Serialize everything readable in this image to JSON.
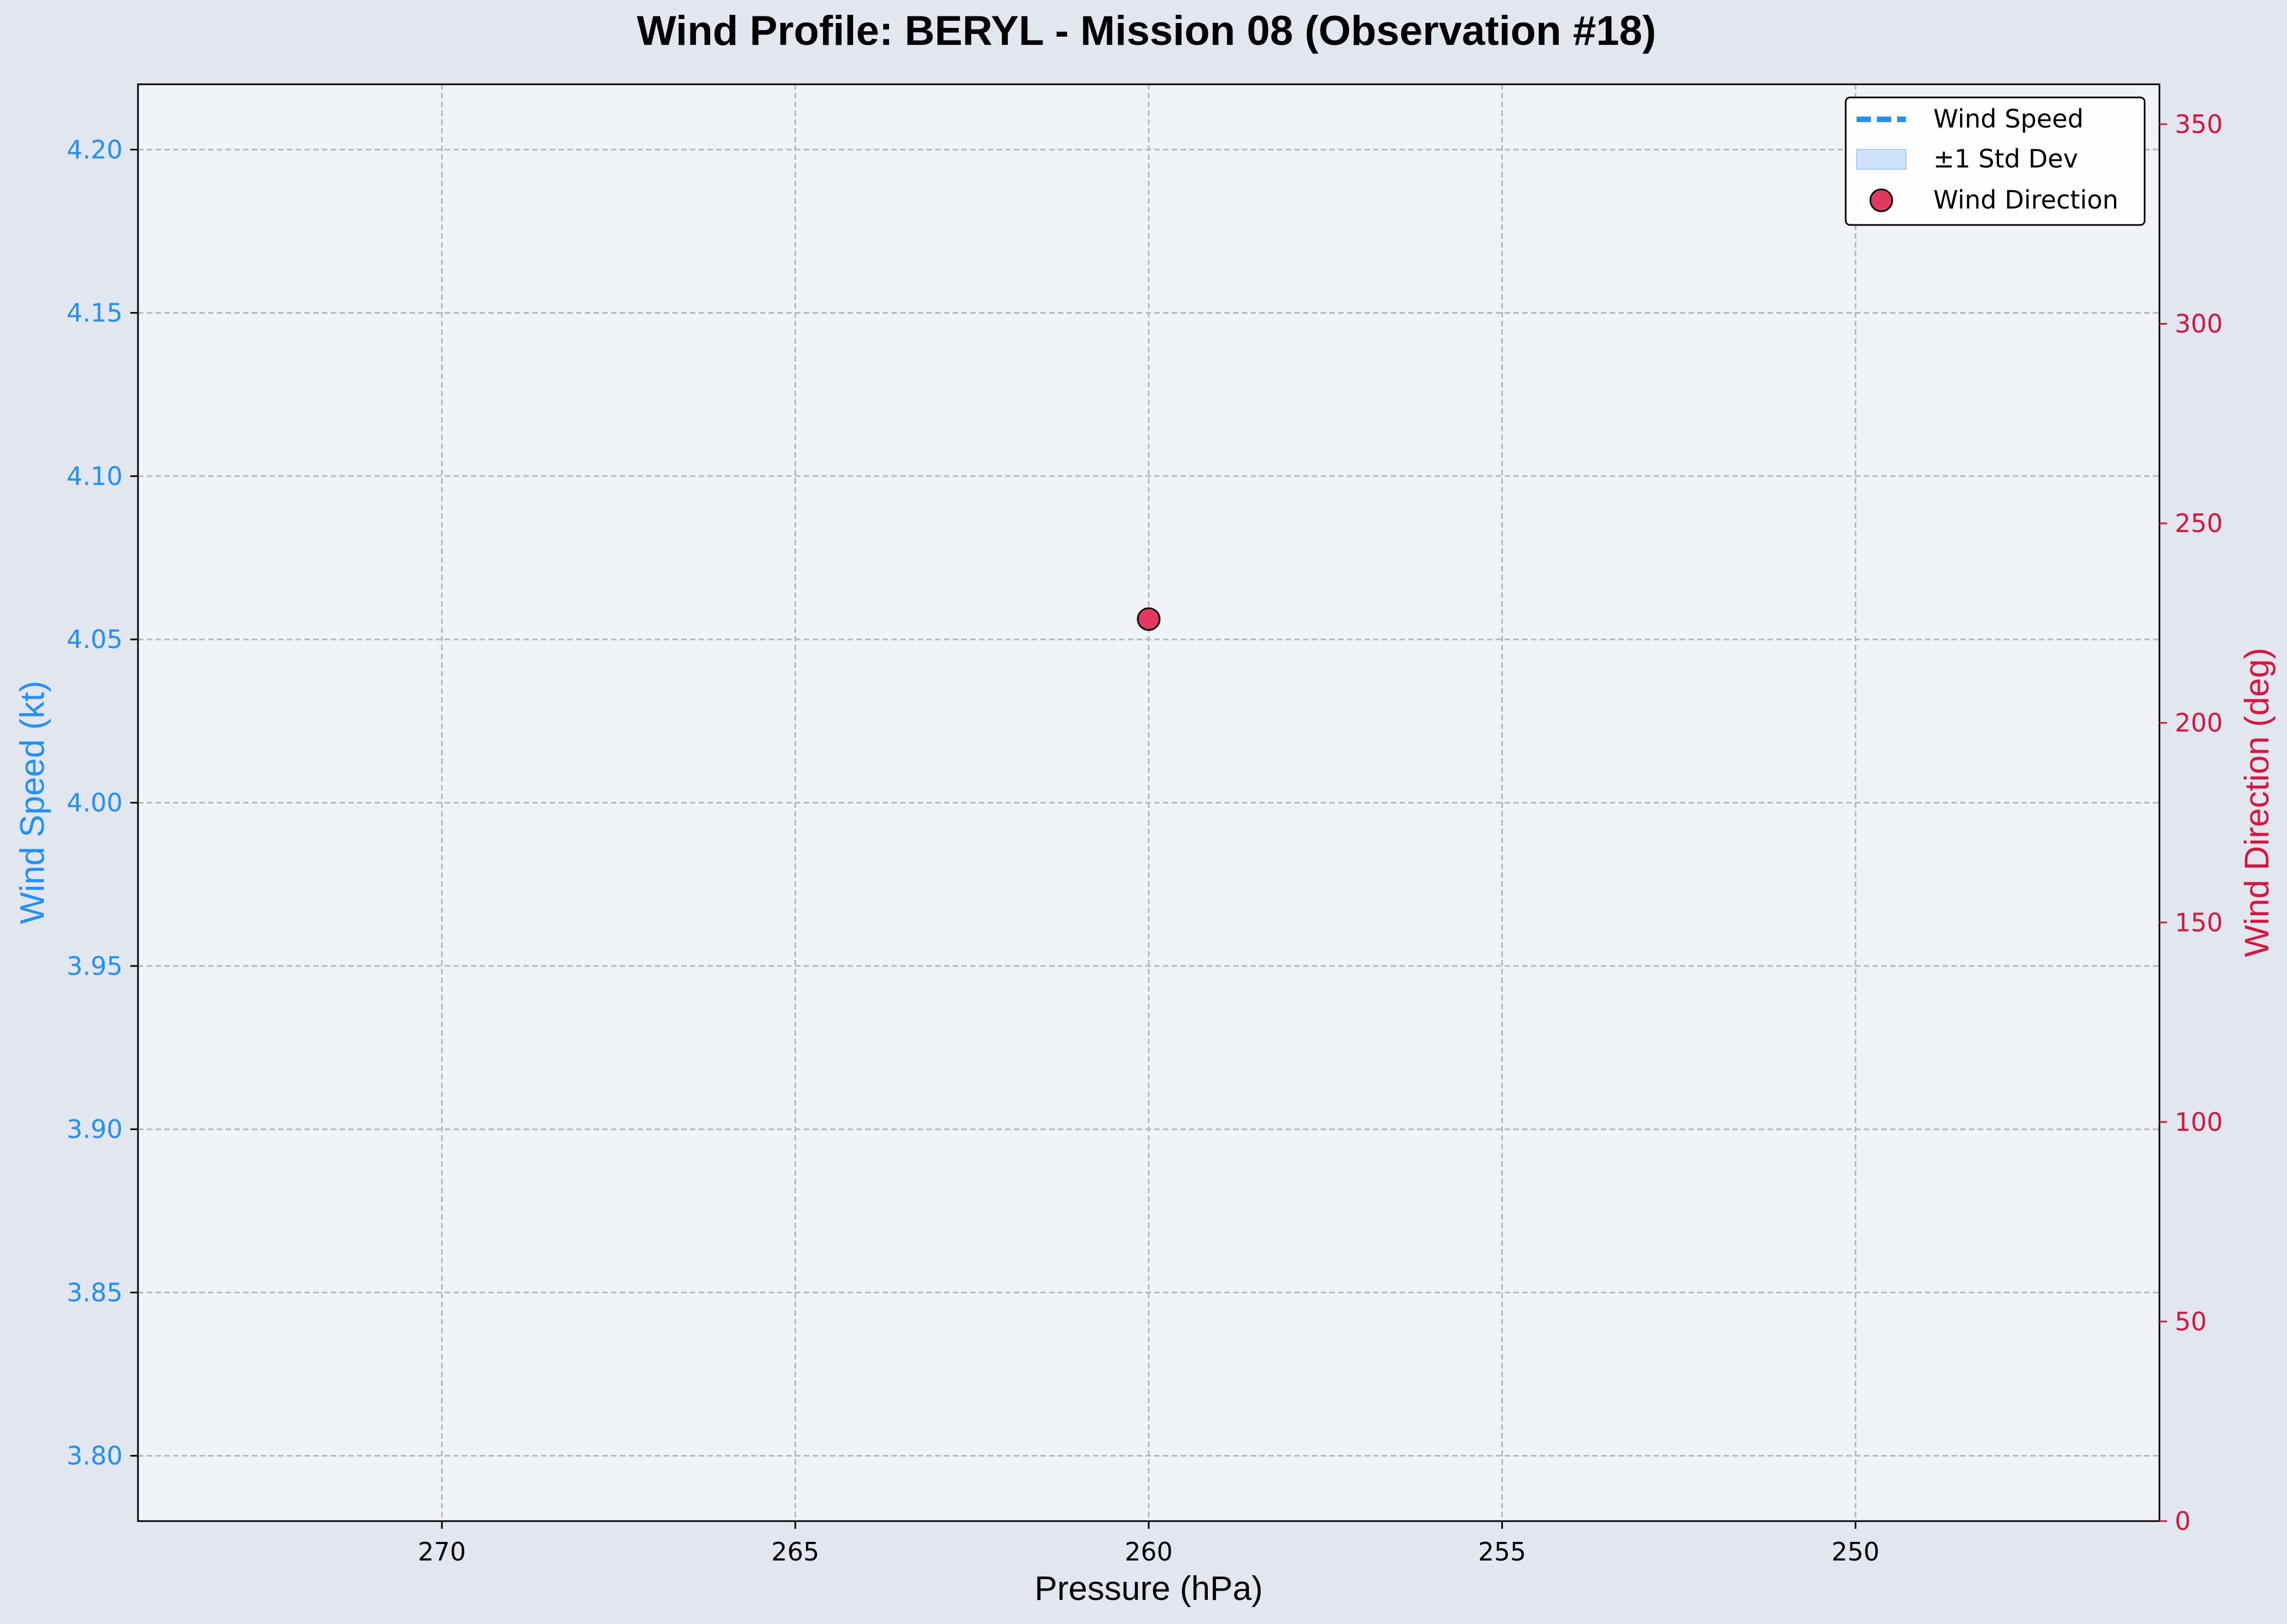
{
  "colors": {
    "figure_bg": "#e1e6ef",
    "plot_bg": "#eff3f8",
    "speed": "#1e90ff",
    "direction": "#dc143c",
    "direction_marker": "#e0385f",
    "std_fill": "#cce3fa",
    "grid": "#b5b8bd",
    "text": "#000000"
  },
  "chart_data": {
    "type": "scatter",
    "title": "Wind Profile: BERYL - Mission 08 (Observation #18)",
    "xlabel": "Pressure (hPa)",
    "ylabel": "Wind Speed (kt)",
    "y2label": "Wind Direction (deg)",
    "x_inverted": true,
    "xlim": [
      274.3,
      245.7
    ],
    "xticks": [
      270,
      265,
      260,
      255,
      250
    ],
    "ylim": [
      3.78,
      4.22
    ],
    "yticks": [
      3.8,
      3.85,
      3.9,
      3.95,
      4.0,
      4.05,
      4.1,
      4.15,
      4.2
    ],
    "ytick_labels": [
      "3.80",
      "3.85",
      "3.90",
      "3.95",
      "4.00",
      "4.05",
      "4.10",
      "4.15",
      "4.20"
    ],
    "y2lim": [
      0,
      360
    ],
    "y2ticks": [
      0,
      50,
      100,
      150,
      200,
      250,
      300,
      350
    ],
    "grid": true,
    "legend_position": "top-right",
    "legend": [
      {
        "label": "Wind Speed",
        "kind": "dashed-line"
      },
      {
        "label": "±1 Std Dev",
        "kind": "fill"
      },
      {
        "label": "Wind Direction",
        "kind": "marker"
      }
    ],
    "series": [
      {
        "name": "Wind Speed",
        "axis": "left",
        "x": [
          260
        ],
        "y": [
          4.056
        ]
      },
      {
        "name": "±1 Std Dev",
        "axis": "left",
        "x": [
          260
        ],
        "lower": [
          4.056
        ],
        "upper": [
          4.056
        ]
      },
      {
        "name": "Wind Direction",
        "axis": "right",
        "x": [
          260
        ],
        "y": [
          226
        ]
      }
    ]
  }
}
